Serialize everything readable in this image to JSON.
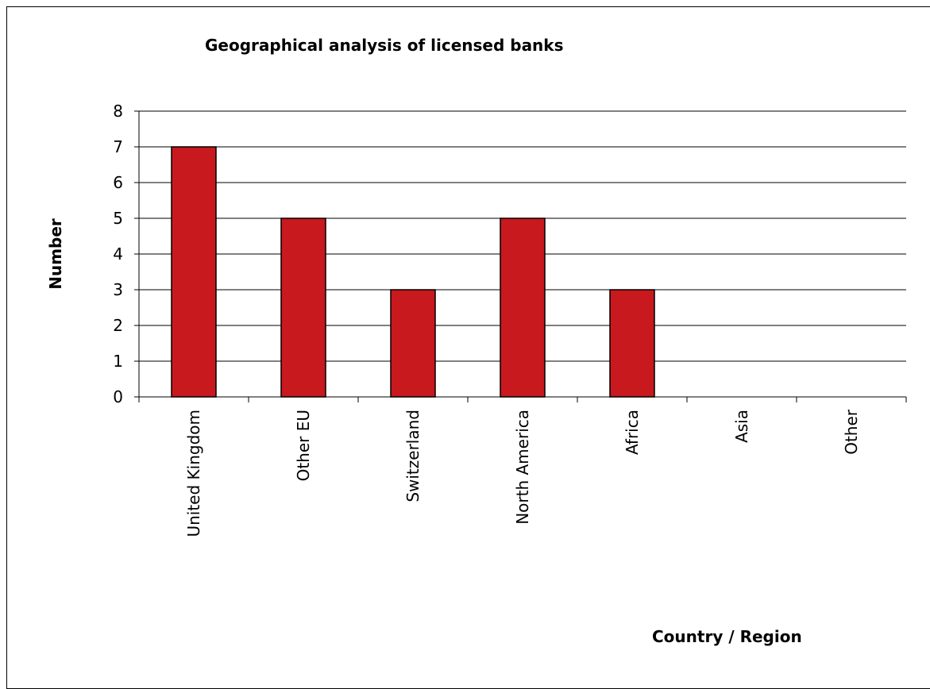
{
  "chart_data": {
    "type": "bar",
    "title": "Geographical analysis of licensed banks",
    "xlabel": "Country / Region",
    "ylabel": "Number",
    "categories": [
      "United Kingdom",
      "Other EU",
      "Switzerland",
      "North America",
      "Africa",
      "Asia",
      "Other"
    ],
    "values": [
      7,
      5,
      3,
      5,
      3,
      0,
      0
    ],
    "ylim": [
      0,
      8
    ],
    "yticks": [
      "0",
      "1",
      "2",
      "3",
      "4",
      "5",
      "6",
      "7",
      "8"
    ],
    "grid": true,
    "legend": "none",
    "bar_color": "#C8191E",
    "bar_edge_color": "#000000"
  }
}
